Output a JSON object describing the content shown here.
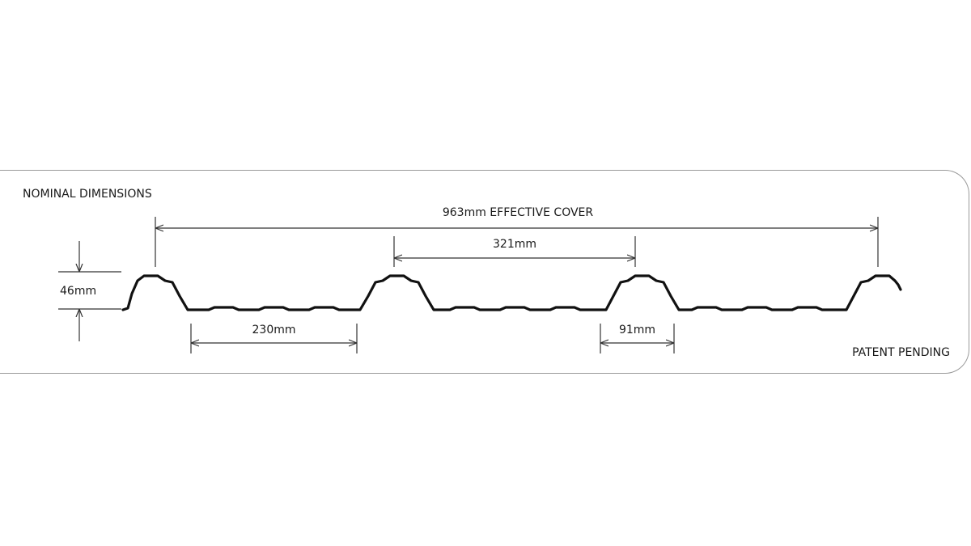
{
  "diagram": {
    "title": "NOMINAL DIMENSIONS",
    "footer": "PATENT PENDING",
    "dimensions": {
      "effective_cover": "963mm EFFECTIVE COVER",
      "rib_pitch": "321mm",
      "rib_height": "46mm",
      "pan_width": "230mm",
      "rib_base_width": "91mm"
    },
    "colors": {
      "profile": "#111111",
      "dimension_lines": "#333333",
      "frame": "#9a9a9a",
      "background": "#ffffff"
    }
  }
}
